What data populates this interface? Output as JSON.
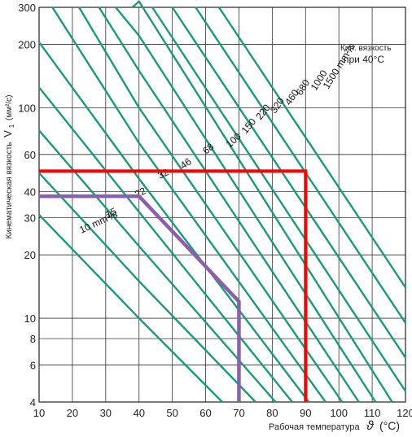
{
  "chart_data": {
    "type": "line",
    "xlabel": "Рабочая температура",
    "xlabel_symbol": "ϑ",
    "xlabel_unit": "(°C)",
    "ylabel": "Кинематическая вязкость",
    "ylabel_symbol": "V",
    "ylabel_subscript": "1",
    "ylabel_unit": "(мм²/с)",
    "legend_title_line1": "Кин. вязкость",
    "legend_title_line2": "при 40°C",
    "x_ticks": [
      10,
      20,
      30,
      40,
      50,
      60,
      70,
      80,
      90,
      100,
      110,
      120
    ],
    "y_ticks": [
      4,
      6,
      8,
      10,
      20,
      30,
      40,
      60,
      100,
      200,
      300
    ],
    "xlim": [
      10,
      120
    ],
    "ylim": [
      4,
      300
    ],
    "yscale": "log",
    "grid": true,
    "series": [
      {
        "name": "10 mm²/s",
        "points": [
          [
            10,
            31
          ],
          [
            40,
            10
          ],
          [
            65,
            4
          ]
        ]
      },
      {
        "name": "15",
        "points": [
          [
            10,
            49
          ],
          [
            40,
            15
          ],
          [
            75,
            4
          ]
        ]
      },
      {
        "name": "22",
        "points": [
          [
            10,
            78
          ],
          [
            40,
            22
          ],
          [
            81,
            4
          ]
        ]
      },
      {
        "name": "32",
        "points": [
          [
            10,
            125
          ],
          [
            40,
            32
          ],
          [
            86,
            4
          ]
        ]
      },
      {
        "name": "46",
        "points": [
          [
            10,
            205
          ],
          [
            40,
            46
          ],
          [
            91,
            4
          ]
        ]
      },
      {
        "name": "68",
        "points": [
          [
            14,
            300
          ],
          [
            40,
            68
          ],
          [
            96,
            4
          ]
        ]
      },
      {
        "name": "100",
        "points": [
          [
            22,
            300
          ],
          [
            40,
            100
          ],
          [
            101,
            4
          ]
        ]
      },
      {
        "name": "150",
        "points": [
          [
            28,
            300
          ],
          [
            40,
            150
          ],
          [
            106,
            4
          ]
        ]
      },
      {
        "name": "220",
        "points": [
          [
            33,
            300
          ],
          [
            40,
            220
          ],
          [
            111,
            4
          ]
        ]
      },
      {
        "name": "320",
        "points": [
          [
            38,
            300
          ],
          [
            40,
            320
          ],
          [
            116,
            4
          ]
        ]
      },
      {
        "name": "460",
        "points": [
          [
            44,
            300
          ],
          [
            120,
            4.5
          ]
        ]
      },
      {
        "name": "680",
        "points": [
          [
            50,
            300
          ],
          [
            120,
            6.5
          ]
        ]
      },
      {
        "name": "1000",
        "points": [
          [
            57,
            300
          ],
          [
            120,
            9.5
          ]
        ]
      },
      {
        "name": "1500 mm²/s",
        "points": [
          [
            64,
            300
          ],
          [
            120,
            14
          ]
        ]
      }
    ],
    "annotations": {
      "purple_path": [
        [
          10,
          38
        ],
        [
          40,
          38
        ],
        [
          70,
          12
        ],
        [
          70,
          4
        ]
      ],
      "red_path": [
        [
          10,
          50
        ],
        [
          90,
          50
        ],
        [
          90,
          4
        ]
      ]
    },
    "colors": {
      "curves": "#1a9a7c",
      "purple": "#8b5fb0",
      "red": "#ff0000",
      "grid": "#333333"
    }
  }
}
